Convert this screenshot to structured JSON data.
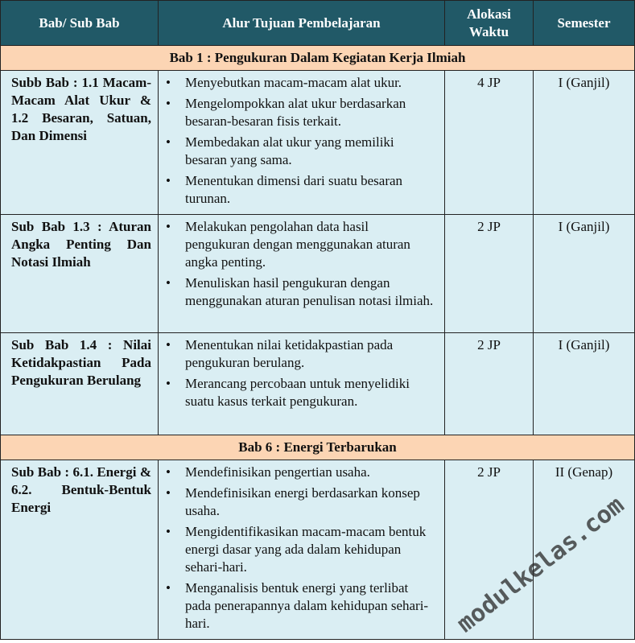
{
  "header": {
    "col1": "Bab/ Sub Bab",
    "col2": "Alur Tujuan Pembelajaran",
    "col3": "Alokasi Waktu",
    "col4": "Semester"
  },
  "sections": [
    {
      "title": "Bab 1 : Pengukuran Dalam Kegiatan Kerja Ilmiah",
      "rows": [
        {
          "sub": "Subb Bab : 1.1 Macam-Macam Alat Ukur & 1.2 Besaran, Satuan, Dan Dimensi",
          "goals": [
            "Menyebutkan macam-macam alat ukur.",
            "Mengelompokkan alat ukur berdasarkan besaran-besaran fisis terkait.",
            "Membedakan alat ukur yang memiliki besaran yang sama.",
            "Menentukan dimensi dari suatu besaran turunan."
          ],
          "time": "4 JP",
          "semester": "I (Ganjil)"
        },
        {
          "sub": "Sub Bab 1.3 : Aturan Angka Penting Dan Notasi Ilmiah",
          "goals": [
            "Melakukan pengolahan data hasil pengukuran dengan menggunakan aturan angka penting.",
            "Menuliskan hasil pengukuran dengan menggunakan aturan penulisan notasi ilmiah."
          ],
          "time": "2 JP",
          "semester": "I (Ganjil)"
        },
        {
          "sub": "Sub Bab 1.4 : Nilai Ketidakpastian Pada Pengukuran Berulang",
          "goals": [
            "Menentukan nilai ketidakpastian pada pengukuran berulang.",
            "Merancang percobaan untuk menyelidiki suatu kasus terkait pengukuran."
          ],
          "time": "2 JP",
          "semester": "I (Ganjil)"
        }
      ]
    },
    {
      "title": "Bab 6 : Energi Terbarukan",
      "rows": [
        {
          "sub": "Sub Bab : 6.1. Energi & 6.2. Bentuk-Bentuk Energi",
          "goals": [
            "Mendefinisikan pengertian usaha.",
            "Mendefinisikan energi berdasarkan konsep usaha.",
            "Mengidentifikasikan macam-macam bentuk energi dasar yang ada dalam kehidupan sehari-hari.",
            "Menganalisis bentuk energi yang terlibat pada penerapannya dalam kehidupan sehari-hari."
          ],
          "time": "2 JP",
          "semester": "II (Genap)"
        }
      ]
    }
  ],
  "watermark": "modulkelas.com",
  "colors": {
    "header_bg": "#215967",
    "section_bg": "#fcd5b4",
    "body_bg": "#daeef3"
  }
}
